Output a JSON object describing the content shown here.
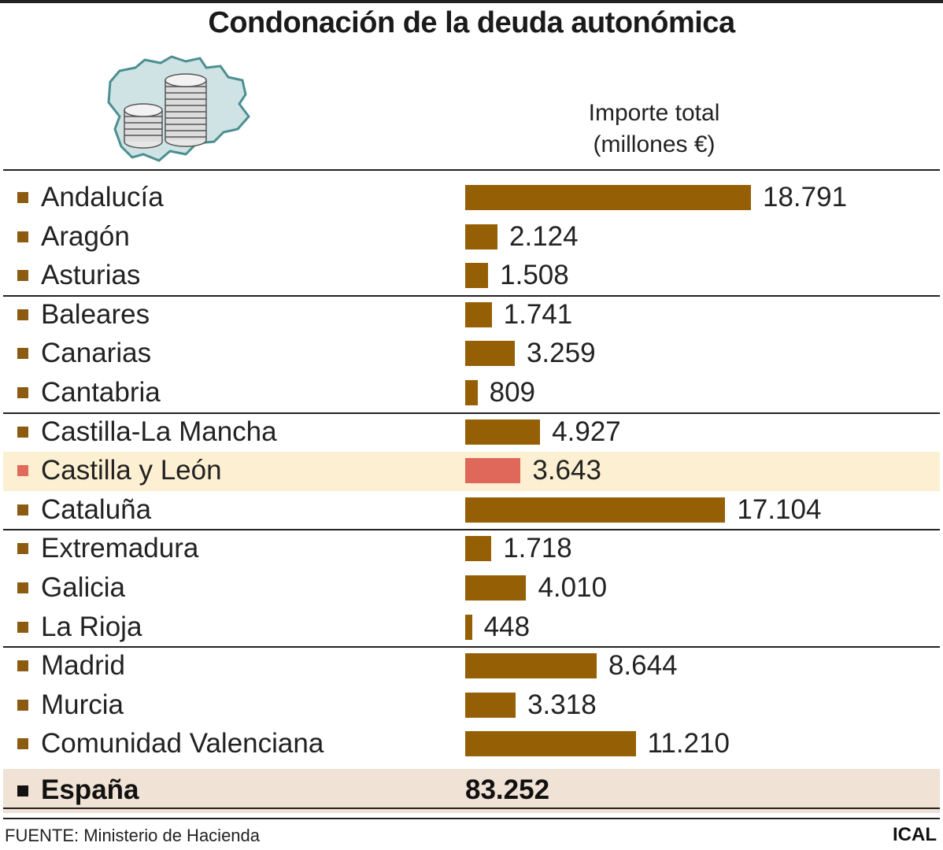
{
  "title": "Condonación de la deuda autonómica",
  "column_header": {
    "line1": "Importe total",
    "line2": "(millones €)"
  },
  "icon": "castilla-leon-map-with-coins-icon",
  "colors": {
    "bar": "#955f05",
    "highlight_bar": "#e0685a",
    "highlight_row": "#fdf0d2",
    "total_row": "#f0e2d4"
  },
  "chart_data": {
    "type": "bar",
    "orientation": "horizontal",
    "title": "Condonación de la deuda autonómica",
    "value_label": "Importe total (millones €)",
    "categories": [
      "Andalucía",
      "Aragón",
      "Asturias",
      "Baleares",
      "Canarias",
      "Cantabria",
      "Castilla-La Mancha",
      "Castilla y León",
      "Cataluña",
      "Extremadura",
      "Galicia",
      "La Rioja",
      "Madrid",
      "Murcia",
      "Comunidad Valenciana"
    ],
    "values": [
      18791,
      2124,
      1508,
      1741,
      3259,
      809,
      4927,
      3643,
      17104,
      1718,
      4010,
      448,
      8644,
      3318,
      11210
    ],
    "value_labels": [
      "18.791",
      "2.124",
      "1.508",
      "1.741",
      "3.259",
      "809",
      "4.927",
      "3.643",
      "17.104",
      "1.718",
      "4.010",
      "448",
      "8.644",
      "3.318",
      "11.210"
    ],
    "highlight": "Castilla y León",
    "total": {
      "label": "España",
      "value": 83252,
      "value_label": "83.252"
    },
    "grid": false
  },
  "footer": {
    "source": "FUENTE: Ministerio de Hacienda",
    "credit": "ICAL"
  }
}
